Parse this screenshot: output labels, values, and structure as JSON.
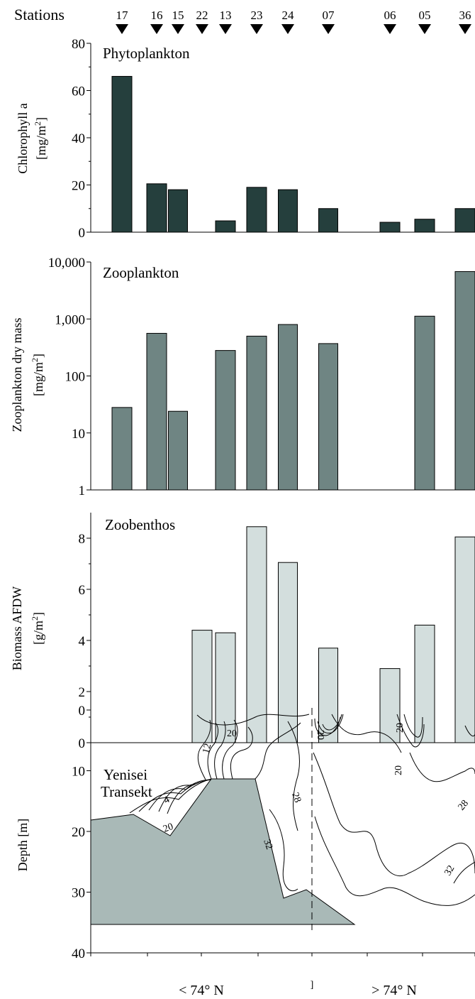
{
  "stations_label": "Stations",
  "stations": [
    "17",
    "16",
    "15",
    "22",
    "13",
    "23",
    "24",
    "07",
    "06",
    "05",
    "36"
  ],
  "chart_data": [
    {
      "type": "bar",
      "title": "Phytoplankton",
      "ylabel_line1": "Chlorophyll a",
      "ylabel_line2_base": "[mg/m",
      "ylabel_line2_sup": "2",
      "ylabel_line2_end": "]",
      "ylim": [
        0,
        80
      ],
      "yticks": [
        "0",
        "20",
        "40",
        "60",
        "80"
      ],
      "color": "#253f3d",
      "categories": [
        "17",
        "16",
        "15",
        "13",
        "23",
        "24",
        "07",
        "06",
        "05",
        "36"
      ],
      "values": [
        66,
        20.5,
        18,
        4.8,
        19,
        18,
        10,
        4.2,
        5.5,
        10
      ]
    },
    {
      "type": "bar",
      "title": "Zooplankton",
      "ylabel_line1": "Zooplankton dry mass",
      "ylabel_line2_base": "[mg/m",
      "ylabel_line2_sup": "2",
      "ylabel_line2_end": "]",
      "scale": "log",
      "ylim": [
        1,
        10000
      ],
      "yticks": [
        "1",
        "10",
        "100",
        "1,000",
        "10,000"
      ],
      "color": "#6f8583",
      "categories": [
        "17",
        "16",
        "15",
        "13",
        "23",
        "24",
        "07",
        "05",
        "36"
      ],
      "values": [
        28,
        560,
        24,
        280,
        500,
        800,
        370,
        1120,
        6800
      ]
    },
    {
      "type": "bar",
      "title": "Zoobenthos",
      "ylabel_line1": "Biomass AFDW",
      "ylabel_line2_base": "[g/m",
      "ylabel_line2_sup": "2",
      "ylabel_line2_end": "]",
      "ylim": [
        0,
        9
      ],
      "yticks": [
        "0",
        "2",
        "4",
        "6",
        "8"
      ],
      "color": "#d3dedd",
      "categories": [
        "22",
        "13",
        "23",
        "24",
        "07",
        "06",
        "05",
        "36"
      ],
      "values": [
        4.4,
        4.3,
        8.45,
        7.05,
        3.7,
        2.9,
        4.6,
        8.05
      ]
    }
  ],
  "transect": {
    "title_line1": "Yenisei",
    "title_line2": "Transekt",
    "ylabel": "Depth [m]",
    "ylim": [
      0,
      40
    ],
    "yticks": [
      "0",
      "10",
      "20",
      "30",
      "40"
    ],
    "contour_labels": [
      "4",
      "12",
      "20",
      "20",
      "28",
      "32",
      "20",
      "20",
      "20",
      "28",
      "32"
    ],
    "region_left": "< 74° N",
    "region_right": "> 74° N",
    "seabed_color": "#a9b9b7"
  }
}
